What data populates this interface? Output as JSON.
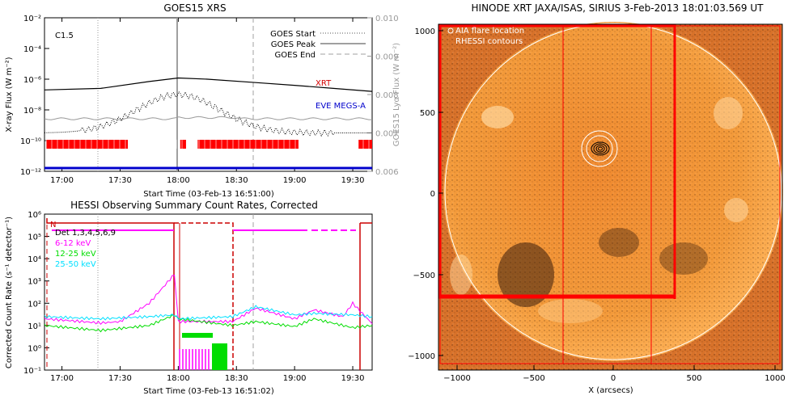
{
  "goes_panel": {
    "title": "GOES15 XRS",
    "class_label": "C1.5",
    "xlabel": "Start Time (03-Feb-13 16:51:00)",
    "ylabel_left": "X-ray Flux (W m⁻²)",
    "ylabel_right": "GOES15 Lyα Flux (W m⁻²)",
    "xticks": [
      "17:00",
      "17:30",
      "18:00",
      "18:30",
      "19:00",
      "19:30"
    ],
    "yticks_left": [
      "10⁻²",
      "10⁻⁴",
      "10⁻⁶",
      "10⁻⁸",
      "10⁻¹⁰",
      "10⁻¹²"
    ],
    "yticks_right": [
      "0.010",
      "0.009",
      "0.008",
      "0.007",
      "0.006"
    ],
    "legend": {
      "start": "GOES Start",
      "peak": "GOES Peak",
      "end": "GOES End"
    },
    "label_xrt": "XRT",
    "label_eve": "EVE MEGS-A",
    "colors": {
      "xrt_label": "#d40000",
      "eve": "#0000cc",
      "xrt_bars": "#ff0000",
      "peak": "#a0a0a0"
    }
  },
  "hessi_panel": {
    "title": "HESSI Observing Summary Count Rates, Corrected",
    "xlabel": "Start Time (03-Feb-13 16:51:02)",
    "ylabel": "Corrected Count Rate (s⁻¹ detector⁻¹)",
    "xticks": [
      "17:00",
      "17:30",
      "18:00",
      "18:30",
      "19:00",
      "19:30"
    ],
    "yticks": [
      "10⁶",
      "10⁵",
      "10⁴",
      "10³",
      "10²",
      "10¹",
      "10⁰",
      "10⁻¹"
    ],
    "flag_n": "N",
    "legend": [
      {
        "name": "Det 1,3,4,5,6,9",
        "color": "#000000"
      },
      {
        "name": "6-12 keV",
        "color": "#ff00ff"
      },
      {
        "name": "12-25 keV",
        "color": "#00dd00"
      },
      {
        "name": "25-50 keV",
        "color": "#00e0ff"
      }
    ]
  },
  "solar_panel": {
    "title": "HINODE XRT JAXA/ISAS, SIRIUS   3-Feb-2013 18:01:03.569 UT",
    "legend_aia": "AIA flare location",
    "legend_rhessi": "RHESSI contours",
    "xlabel": "X (arcsecs)",
    "xticks": [
      "−1000",
      "−500",
      "0",
      "500",
      "1000"
    ],
    "yticks": [
      "1000",
      "500",
      "0",
      "−500",
      "−1000"
    ],
    "colors": {
      "disk": "#ff9a2e",
      "sky": "#e0782a",
      "frame": "#ff0000"
    }
  },
  "chart_data": [
    {
      "type": "line",
      "title": "GOES15 XRS",
      "xlabel": "Start Time (03-Feb-13 16:51:00)",
      "ylabel": "X-ray Flux (W m⁻²)",
      "y_scale": "log",
      "ylim": [
        1e-12,
        0.01
      ],
      "xlim": [
        "16:51",
        "19:40"
      ],
      "events": {
        "goes_start": "17:20",
        "goes_peak": "18:00",
        "goes_end": "18:40"
      },
      "series": [
        {
          "name": "XRT",
          "x": [
            "16:51",
            "17:20",
            "17:45",
            "18:00",
            "18:15",
            "18:40",
            "19:00",
            "19:20",
            "19:40"
          ],
          "y": [
            2e-07,
            2.5e-07,
            7e-07,
            1.2e-06,
            1e-06,
            6e-07,
            4e-07,
            2.5e-07,
            1.6e-07
          ]
        },
        {
          "name": "EVE MEGS-A",
          "x": [
            "16:51",
            "19:40"
          ],
          "y": [
            1e-12,
            1e-12
          ]
        }
      ],
      "xrt_coverage": [
        [
          "16:52",
          "17:34"
        ],
        [
          "18:01",
          "18:04"
        ],
        [
          "18:10",
          "19:02"
        ],
        [
          "19:33",
          "19:40"
        ]
      ]
    },
    {
      "type": "line",
      "title": "HESSI Observing Summary Count Rates, Corrected",
      "xlabel": "Start Time (03-Feb-13 16:51:02)",
      "ylabel": "Corrected Count Rate (s⁻¹ detector⁻¹)",
      "y_scale": "log",
      "ylim": [
        0.1,
        1000000.0
      ],
      "xlim": [
        "16:51",
        "19:40"
      ],
      "series": [
        {
          "name": "6-12 keV",
          "x": [
            "16:51",
            "17:20",
            "17:30",
            "17:45",
            "17:58",
            "18:00",
            "18:28",
            "18:40",
            "19:00",
            "19:10",
            "19:25",
            "19:30",
            "19:40"
          ],
          "y": [
            20,
            13,
            15,
            100,
            2000,
            15,
            15,
            60,
            20,
            50,
            25,
            100,
            12
          ]
        },
        {
          "name": "12-25 keV",
          "x": [
            "16:51",
            "17:20",
            "17:45",
            "17:58",
            "18:00",
            "18:28",
            "18:40",
            "19:00",
            "19:10",
            "19:30",
            "19:40"
          ],
          "y": [
            10,
            6,
            10,
            30,
            20,
            10,
            15,
            9,
            20,
            8,
            10
          ]
        },
        {
          "name": "25-50 keV",
          "x": [
            "16:51",
            "17:20",
            "17:45",
            "17:58",
            "18:00",
            "18:28",
            "18:40",
            "19:00",
            "19:10",
            "19:30",
            "19:40"
          ],
          "y": [
            25,
            20,
            25,
            30,
            20,
            25,
            70,
            30,
            35,
            30,
            25
          ]
        }
      ]
    }
  ]
}
